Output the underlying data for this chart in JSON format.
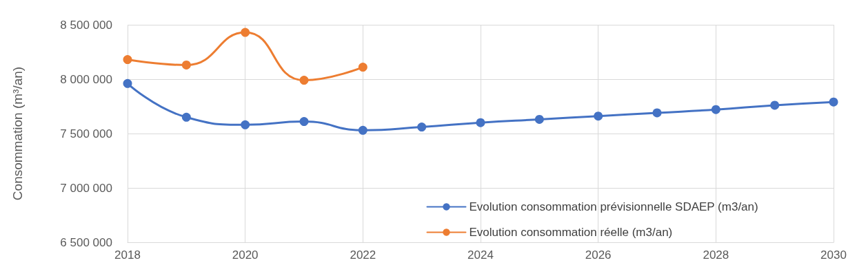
{
  "chart_data": {
    "type": "line",
    "ylabel": "Consommation (m³/an)",
    "x": [
      2018,
      2019,
      2020,
      2021,
      2022,
      2023,
      2024,
      2025,
      2026,
      2027,
      2028,
      2029,
      2030
    ],
    "series": [
      {
        "name": "Evolution consommation prévisionnelle SDAEP (m3/an)",
        "color": "#4472c4",
        "values": [
          7960000,
          7650000,
          7580000,
          7610000,
          7530000,
          7560000,
          7600000,
          7630000,
          7660000,
          7690000,
          7720000,
          7760000,
          7790000
        ]
      },
      {
        "name": "Evolution consommation réelle (m3/an)",
        "color": "#ed7d31",
        "x": [
          2018,
          2019,
          2020,
          2021,
          2022
        ],
        "values": [
          8180000,
          8130000,
          8430000,
          7990000,
          8110000
        ]
      }
    ],
    "xlim": [
      2018,
      2030
    ],
    "xticks": [
      2018,
      2020,
      2022,
      2024,
      2026,
      2028,
      2030
    ],
    "ylim": [
      6500000,
      8500000
    ],
    "yticks": [
      {
        "value": 6500000,
        "label": "6 500 000"
      },
      {
        "value": 7000000,
        "label": "7 000 000"
      },
      {
        "value": 7500000,
        "label": "7 500 000"
      },
      {
        "value": 8000000,
        "label": "8 000 000"
      },
      {
        "value": 8500000,
        "label": "8 500 000"
      }
    ],
    "grid": true,
    "legend": "bottom right",
    "marker": "circle",
    "line_style": "solid"
  }
}
